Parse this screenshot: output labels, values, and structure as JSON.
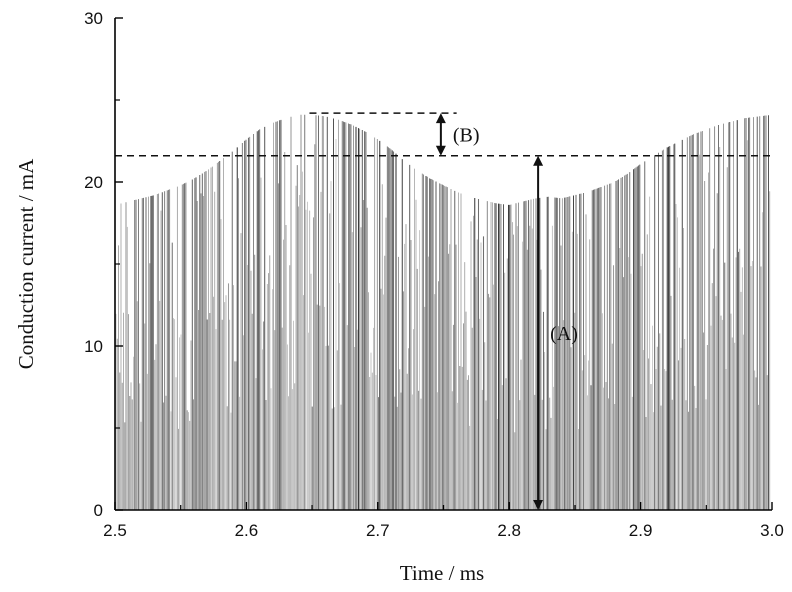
{
  "chart_data": {
    "type": "bar",
    "title": "",
    "xlabel": "Time / ms",
    "ylabel": "Conduction current / mA",
    "xlim": [
      2.5,
      3.0
    ],
    "ylim": [
      0,
      30
    ],
    "xticks": [
      "2.5",
      "2.6",
      "2.7",
      "2.8",
      "2.9",
      "3.0"
    ],
    "xtick_values": [
      2.5,
      2.6,
      2.7,
      2.8,
      2.9,
      3.0
    ],
    "yticks": [
      "0",
      "10",
      "20",
      "30"
    ],
    "ytick_values": [
      0,
      10,
      20,
      30
    ],
    "grid": false,
    "series": [
      {
        "envelope_x": [
          2.5,
          2.51,
          2.52,
          2.53,
          2.54,
          2.55,
          2.56,
          2.57,
          2.58,
          2.59,
          2.6,
          2.61,
          2.62,
          2.63,
          2.64,
          2.65,
          2.66,
          2.67,
          2.68,
          2.69,
          2.7,
          2.71,
          2.72,
          2.73,
          2.74,
          2.75,
          2.76,
          2.77,
          2.78,
          2.79,
          2.8,
          2.81,
          2.82,
          2.83,
          2.84,
          2.85,
          2.86,
          2.87,
          2.88,
          2.89,
          2.9,
          2.91,
          2.92,
          2.93,
          2.94,
          2.95,
          2.96,
          2.97,
          2.98,
          2.99,
          3.0
        ],
        "envelope_y": [
          18.6,
          18.8,
          19.0,
          19.2,
          19.5,
          19.8,
          20.2,
          20.7,
          21.3,
          21.9,
          22.6,
          23.2,
          23.6,
          23.9,
          24.1,
          24.1,
          24.0,
          23.8,
          23.5,
          23.1,
          22.6,
          22.0,
          21.3,
          20.7,
          20.2,
          19.8,
          19.4,
          19.1,
          18.9,
          18.7,
          18.6,
          18.8,
          19.0,
          19.1,
          19.0,
          19.2,
          19.4,
          19.7,
          20.0,
          20.5,
          21.1,
          21.6,
          22.1,
          22.5,
          22.9,
          23.2,
          23.5,
          23.7,
          23.9,
          24.0,
          24.1
        ]
      }
    ],
    "reference_lines": [
      {
        "y": 21.6,
        "x_start": 2.5,
        "x_end": 3.0,
        "style": "dashed"
      },
      {
        "y": 24.2,
        "x_start": 2.648,
        "x_end": 2.76,
        "style": "dashed"
      }
    ],
    "annotations": [
      {
        "label": "(A)",
        "x": 2.822,
        "y_from": 0,
        "y_to": 21.6
      },
      {
        "label": "(B)",
        "x": 2.748,
        "y_from": 21.6,
        "y_to": 24.2
      }
    ],
    "bar_color": "#7a7a7a"
  }
}
